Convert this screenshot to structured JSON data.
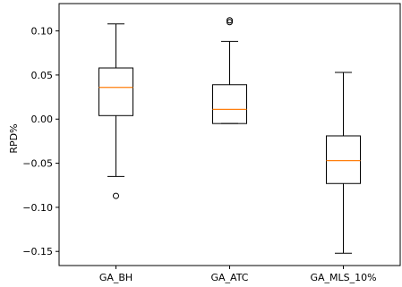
{
  "chart_data": {
    "type": "box",
    "title": "",
    "xlabel": "",
    "ylabel": "RPD%",
    "ylim": [
      -0.166,
      0.131
    ],
    "yticks": [
      0.1,
      0.05,
      0.0,
      -0.05,
      -0.1,
      -0.15
    ],
    "ytick_labels": [
      "0.10",
      "0.05",
      "0.00",
      "−0.05",
      "−0.10",
      "−0.15"
    ],
    "grid": false,
    "categories": [
      "GA_BH",
      "GA_ATC",
      "GA_MLS_10%"
    ],
    "boxes": [
      {
        "whislo": -0.065,
        "q1": 0.004,
        "med": 0.036,
        "q3": 0.058,
        "whishi": 0.108,
        "fliers": [
          -0.087
        ]
      },
      {
        "whislo": -0.005,
        "q1": -0.005,
        "med": 0.011,
        "q3": 0.039,
        "whishi": 0.088,
        "fliers": [
          0.112,
          0.11
        ]
      },
      {
        "whislo": -0.152,
        "q1": -0.073,
        "med": -0.047,
        "q3": -0.019,
        "whishi": 0.053,
        "fliers": []
      }
    ],
    "colors": {
      "box": "#000000",
      "median": "#ff7f0e",
      "axis": "#000000"
    }
  }
}
